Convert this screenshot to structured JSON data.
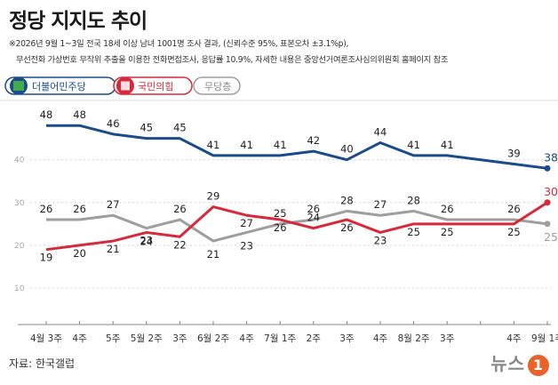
{
  "title": "정당 지지도 추이",
  "notes": [
    "※2026년 9월 1~3일 전국 18세 이상 남녀 1001명 조사 결과, (신뢰수준 95%, 표본오차 ±3.1%p),",
    "무선전화 가상번호 무작위 추출을 이용한 전화면접조사, 응답률 10.9%, 자세한 내용은 중앙선거여론조사심의위원회 홈페이지 참조"
  ],
  "source": "자료: 한국갤럽",
  "logo_text": "뉴스",
  "logo_mark": "1",
  "chart_data": {
    "type": "line",
    "categories": [
      "4월 3주",
      "4주",
      "5주",
      "5월 2주",
      "3주",
      "6월 2주",
      "4주",
      "7월 1주",
      "2주",
      "3주",
      "4주",
      "8월 2주",
      "3주",
      "",
      "4주",
      "9월 1주"
    ],
    "yticks": [
      10,
      20,
      30,
      40
    ],
    "ylim": [
      5,
      52
    ],
    "grid": true,
    "series": [
      {
        "name": "더불어민주당",
        "color": "#1a4b8c",
        "values": [
          48,
          48,
          46,
          45,
          45,
          41,
          41,
          41,
          42,
          40,
          44,
          41,
          41,
          null,
          39,
          38
        ],
        "labels": [
          "48",
          "48",
          "46",
          "45",
          "45",
          "41",
          "41",
          "41",
          "42",
          "40",
          "44",
          "41",
          "41",
          "",
          "39",
          "38%"
        ]
      },
      {
        "name": "국민의힘",
        "color": "#d8283a",
        "values": [
          19,
          20,
          21,
          23,
          22,
          29,
          27,
          26,
          24,
          26,
          23,
          25,
          25,
          null,
          25,
          30
        ],
        "labels": [
          "19",
          "20",
          "21",
          "23",
          "22",
          "29",
          "27",
          "26",
          "24",
          "26",
          "23",
          "25",
          "25",
          "",
          "25",
          "30%"
        ]
      },
      {
        "name": "무당층",
        "color": "#9e9e9e",
        "values": [
          26,
          26,
          27,
          24,
          26,
          21,
          23,
          25,
          26,
          28,
          27,
          28,
          26,
          null,
          26,
          25
        ],
        "labels": [
          "26",
          "26",
          "27",
          "24",
          "26",
          "21",
          "23",
          "25",
          "26",
          "28",
          "27",
          "28",
          "26",
          "",
          "26",
          "25%"
        ]
      }
    ]
  }
}
